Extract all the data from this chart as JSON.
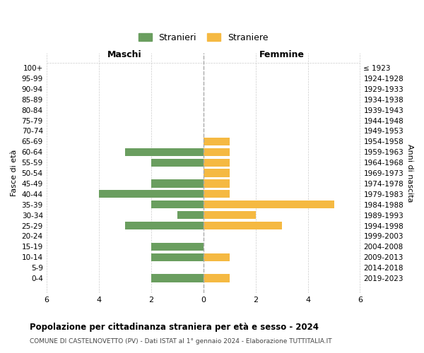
{
  "age_groups": [
    "0-4",
    "5-9",
    "10-14",
    "15-19",
    "20-24",
    "25-29",
    "30-34",
    "35-39",
    "40-44",
    "45-49",
    "50-54",
    "55-59",
    "60-64",
    "65-69",
    "70-74",
    "75-79",
    "80-84",
    "85-89",
    "90-94",
    "95-99",
    "100+"
  ],
  "birth_years": [
    "2019-2023",
    "2014-2018",
    "2009-2013",
    "2004-2008",
    "1999-2003",
    "1994-1998",
    "1989-1993",
    "1984-1988",
    "1979-1983",
    "1974-1978",
    "1969-1973",
    "1964-1968",
    "1959-1963",
    "1954-1958",
    "1949-1953",
    "1944-1948",
    "1939-1943",
    "1934-1938",
    "1929-1933",
    "1924-1928",
    "≤ 1923"
  ],
  "maschi": [
    2,
    0,
    2,
    2,
    0,
    3,
    1,
    2,
    4,
    2,
    0,
    2,
    3,
    0,
    0,
    0,
    0,
    0,
    0,
    0,
    0
  ],
  "femmine": [
    1,
    0,
    1,
    0,
    0,
    3,
    2,
    5,
    1,
    1,
    1,
    1,
    1,
    1,
    0,
    0,
    0,
    0,
    0,
    0,
    0
  ],
  "color_maschi": "#6a9e5f",
  "color_femmine": "#f5b942",
  "title": "Popolazione per cittadinanza straniera per età e sesso - 2024",
  "subtitle": "COMUNE DI CASTELNOVETTO (PV) - Dati ISTAT al 1° gennaio 2024 - Elaborazione TUTTITALIA.IT",
  "legend_maschi": "Stranieri",
  "legend_femmine": "Straniere",
  "xlabel_left": "Maschi",
  "xlabel_right": "Femmine",
  "ylabel_left": "Fasce di età",
  "ylabel_right": "Anni di nascita",
  "xlim": 6,
  "background_color": "#ffffff"
}
